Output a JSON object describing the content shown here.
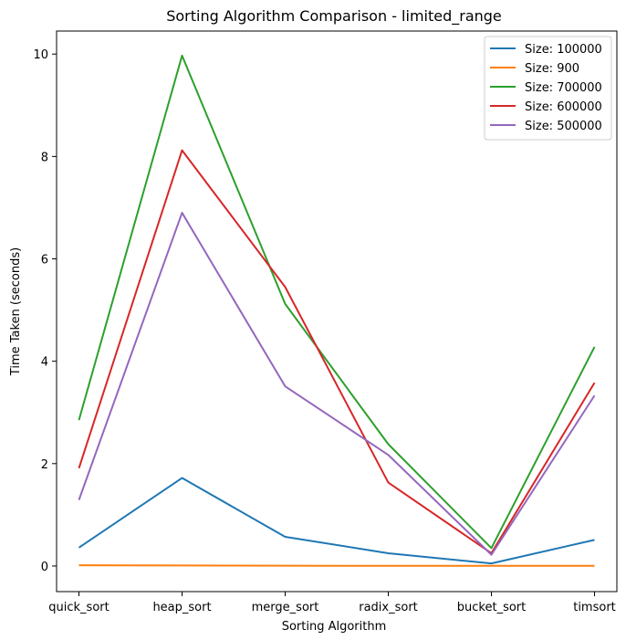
{
  "chart_data": {
    "type": "line",
    "title": "Sorting Algorithm Comparison - limited_range",
    "xlabel": "Sorting Algorithm",
    "ylabel": "Time Taken (seconds)",
    "categories": [
      "quick_sort",
      "heap_sort",
      "merge_sort",
      "radix_sort",
      "bucket_sort",
      "timsort"
    ],
    "ylim": [
      -0.5,
      10.45
    ],
    "yticks": [
      0,
      2,
      4,
      6,
      8,
      10
    ],
    "grid": false,
    "legend_position": "top-right",
    "series": [
      {
        "name": "Size: 100000",
        "color": "#1f77b4",
        "values": [
          0.36,
          1.72,
          0.57,
          0.25,
          0.05,
          0.51
        ]
      },
      {
        "name": "Size: 900",
        "color": "#ff7f0e",
        "values": [
          0.015,
          0.01,
          0.005,
          0.004,
          0.003,
          0.004
        ]
      },
      {
        "name": "Size: 700000",
        "color": "#2ca02c",
        "values": [
          2.85,
          9.97,
          5.12,
          2.38,
          0.35,
          4.28
        ]
      },
      {
        "name": "Size: 600000",
        "color": "#d62728",
        "values": [
          1.91,
          8.12,
          5.45,
          1.63,
          0.25,
          3.58
        ]
      },
      {
        "name": "Size: 500000",
        "color": "#9467bd",
        "values": [
          1.29,
          6.9,
          3.51,
          2.17,
          0.22,
          3.33
        ]
      }
    ]
  }
}
